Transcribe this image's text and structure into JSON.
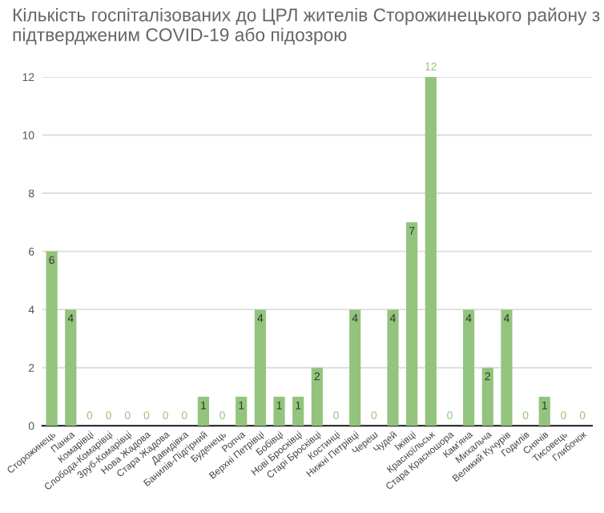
{
  "chart_data": {
    "type": "bar",
    "title": "Кількість госпіталізованих до ЦРЛ жителів Сторожинецького району з підтвердженим COVID-19 або підозрою",
    "categories": [
      "Сторожинець",
      "Панка",
      "Комарівці",
      "Слобода-Комарівці",
      "Зруб-Комарівці",
      "Нова Жадова",
      "Стара Жадова",
      "Давидівка",
      "Банилів-Підгірний",
      "Буденець",
      "Ропча",
      "Верхні Петрівці",
      "Бобівці",
      "Нові Бросківці",
      "Старі Бросківці",
      "Костинці",
      "Нижні Петрівці",
      "Череш",
      "Чудей",
      "Іжівці",
      "Красноїльськ",
      "Стара Красношора",
      "Кам'яна",
      "Михальча",
      "Великий Кучурів",
      "Годилів",
      "Снячів",
      "Тисовець",
      "Глибочок"
    ],
    "values": [
      6,
      4,
      0,
      0,
      0,
      0,
      0,
      0,
      1,
      0,
      1,
      4,
      1,
      1,
      2,
      0,
      4,
      0,
      4,
      7,
      12,
      0,
      4,
      2,
      4,
      0,
      1,
      0,
      0
    ],
    "color": "#93c47d",
    "ylim": [
      0,
      12
    ],
    "yticks": [
      0,
      2,
      4,
      6,
      8,
      10,
      12
    ],
    "grid": "y",
    "data_labels": true
  }
}
